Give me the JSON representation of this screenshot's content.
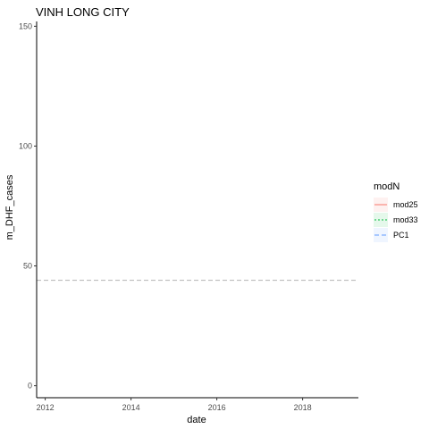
{
  "chart_data": {
    "type": "line",
    "title": "VINH LONG CITY",
    "xlabel": "date",
    "ylabel": "m_DHF_cases",
    "xlim": [
      2011.8,
      2019.3
    ],
    "ylim": [
      -5,
      152
    ],
    "xticks": [
      2012,
      2014,
      2016,
      2018
    ],
    "yticks": [
      0,
      50,
      100,
      150
    ],
    "grid": false,
    "legend": {
      "title": "modN",
      "position": "right",
      "entries": [
        {
          "name": "mod25",
          "color": "#F8766D",
          "linestyle": "solid"
        },
        {
          "name": "mod33",
          "color": "#00BA38",
          "linestyle": "dotted"
        },
        {
          "name": "PC1",
          "color": "#619CFF",
          "linestyle": "dashed"
        }
      ]
    },
    "series": [
      {
        "name": "mod25",
        "values": []
      },
      {
        "name": "mod33",
        "values": []
      },
      {
        "name": "PC1",
        "values": []
      }
    ],
    "reference_lines": [
      {
        "orientation": "horizontal",
        "y": 44,
        "color": "#b3b3b3",
        "linestyle": "dashed"
      }
    ]
  }
}
